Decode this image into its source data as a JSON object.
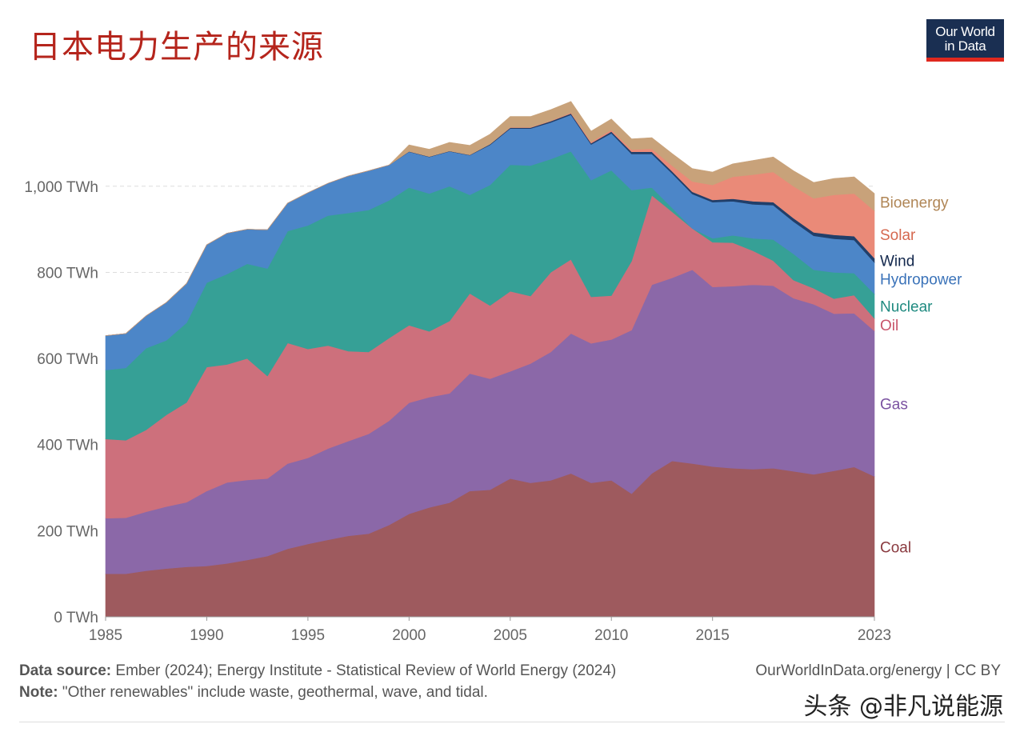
{
  "title": "日本电力生产的来源",
  "logo": {
    "line1": "Our World",
    "line2": "in Data"
  },
  "footer": {
    "source_label": "Data source:",
    "source_text": "Ember (2024); Energy Institute - Statistical Review of World Energy (2024)",
    "note_label": "Note:",
    "note_text": "\"Other renewables\" include waste, geothermal, wave, and tidal.",
    "right": "OurWorldInData.org/energy | CC BY"
  },
  "watermark": "头条 @非凡说能源",
  "colors": {
    "Coal": "#9e5a5e",
    "Gas": "#8b68a8",
    "Oil": "#cd707c",
    "Nuclear": "#36a096",
    "Hydropower": "#4c86c8",
    "Wind": "#213f6a",
    "Solar": "#ea8a78",
    "Bioenergy": "#c8a27a"
  },
  "chart_data": {
    "type": "area",
    "stacked": true,
    "x": [
      1985,
      1986,
      1987,
      1988,
      1989,
      1990,
      1991,
      1992,
      1993,
      1994,
      1995,
      1996,
      1997,
      1998,
      1999,
      2000,
      2001,
      2002,
      2003,
      2004,
      2005,
      2006,
      2007,
      2008,
      2009,
      2010,
      2011,
      2012,
      2013,
      2014,
      2015,
      2016,
      2017,
      2018,
      2019,
      2020,
      2021,
      2022,
      2023
    ],
    "ylim": [
      0,
      1200
    ],
    "yticks": [
      0,
      200,
      400,
      600,
      800,
      1000
    ],
    "ytick_labels": [
      "0 TWh",
      "200 TWh",
      "400 TWh",
      "600 TWh",
      "800 TWh",
      "1,000 TWh"
    ],
    "xticks": [
      1985,
      1990,
      1995,
      2000,
      2005,
      2010,
      2015,
      2023
    ],
    "xtick_labels": [
      "1985",
      "1990",
      "1995",
      "2000",
      "2005",
      "2010",
      "2015",
      "2023"
    ],
    "grid": true,
    "legend_position": "right, labels at series ends",
    "series": [
      {
        "name": "Coal",
        "values": [
          100,
          100,
          107,
          112,
          116,
          118,
          124,
          132,
          141,
          158,
          169,
          179,
          188,
          193,
          213,
          239,
          254,
          265,
          292,
          295,
          321,
          311,
          317,
          333,
          311,
          317,
          286,
          333,
          362,
          356,
          349,
          345,
          343,
          345,
          338,
          331,
          339,
          348,
          326
        ]
      },
      {
        "name": "Gas",
        "values": [
          129,
          130,
          137,
          144,
          150,
          174,
          188,
          186,
          180,
          198,
          200,
          212,
          220,
          232,
          242,
          258,
          256,
          254,
          273,
          258,
          249,
          277,
          298,
          325,
          324,
          327,
          380,
          438,
          425,
          450,
          417,
          423,
          428,
          424,
          402,
          395,
          365,
          357,
          338
        ]
      },
      {
        "name": "Oil",
        "values": [
          184,
          180,
          190,
          213,
          232,
          288,
          274,
          282,
          238,
          280,
          253,
          239,
          209,
          190,
          192,
          180,
          153,
          168,
          186,
          170,
          186,
          157,
          185,
          172,
          108,
          102,
          160,
          208,
          154,
          96,
          104,
          101,
          79,
          58,
          42,
          37,
          35,
          42,
          29
        ]
      },
      {
        "name": "Nuclear",
        "values": [
          160,
          168,
          190,
          173,
          185,
          196,
          210,
          220,
          250,
          260,
          287,
          302,
          321,
          330,
          320,
          320,
          320,
          313,
          229,
          280,
          294,
          303,
          263,
          251,
          271,
          291,
          165,
          18,
          9,
          0,
          9,
          17,
          29,
          49,
          61,
          43,
          61,
          51,
          57
        ]
      },
      {
        "name": "Hydropower",
        "values": [
          80,
          80,
          75,
          88,
          91,
          88,
          95,
          80,
          90,
          65,
          76,
          75,
          86,
          91,
          82,
          83,
          85,
          81,
          92,
          93,
          84,
          86,
          85,
          85,
          83,
          86,
          84,
          78,
          80,
          80,
          84,
          79,
          79,
          80,
          75,
          79,
          78,
          77,
          73
        ]
      },
      {
        "name": "Wind",
        "values": [
          0,
          0,
          0,
          0,
          0,
          0,
          0,
          0,
          0,
          0,
          0,
          0,
          0,
          0,
          0,
          1,
          1,
          1,
          1,
          2,
          2,
          2,
          3,
          3,
          3,
          4,
          5,
          5,
          5,
          5,
          5,
          6,
          7,
          7,
          8,
          8,
          9,
          9,
          10
        ]
      },
      {
        "name": "Solar",
        "values": [
          0,
          0,
          0,
          0,
          0,
          0,
          0,
          0,
          0,
          0,
          0,
          0,
          0,
          0,
          0,
          0,
          0,
          0,
          0,
          0,
          1,
          1,
          1,
          2,
          3,
          4,
          5,
          7,
          13,
          24,
          35,
          51,
          62,
          70,
          74,
          79,
          93,
          99,
          110
        ]
      },
      {
        "name": "Bioenergy",
        "values": [
          0,
          0,
          0,
          0,
          0,
          0,
          0,
          0,
          0,
          0,
          0,
          0,
          0,
          0,
          0,
          15,
          17,
          20,
          22,
          23,
          25,
          25,
          26,
          26,
          25,
          25,
          25,
          26,
          28,
          30,
          30,
          30,
          33,
          35,
          36,
          37,
          38,
          39,
          40
        ]
      }
    ]
  }
}
